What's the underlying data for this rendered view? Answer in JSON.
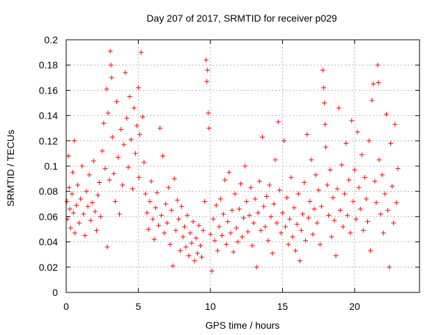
{
  "chart_data": {
    "type": "scatter",
    "title": "Day 207 of 2017, SRMTID for receiver p029",
    "xlabel": "GPS time / hours",
    "ylabel": "SRMTID / TECUs",
    "xlim": [
      0,
      24.5
    ],
    "ylim": [
      0,
      0.2
    ],
    "x_ticks": [
      0,
      5,
      10,
      15,
      20
    ],
    "y_ticks": [
      0,
      0.02,
      0.04,
      0.06,
      0.08,
      0.1,
      0.12,
      0.14,
      0.16,
      0.18,
      0.2
    ],
    "grid": true,
    "marker": "plus",
    "color": "#ff0000",
    "series": [
      {
        "name": "SRMTID",
        "points": [
          [
            0.05,
            0.072
          ],
          [
            0.1,
            0.058
          ],
          [
            0.15,
            0.108
          ],
          [
            0.2,
            0.083
          ],
          [
            0.25,
            0.066
          ],
          [
            0.3,
            0.051
          ],
          [
            0.4,
            0.078
          ],
          [
            0.45,
            0.095
          ],
          [
            0.5,
            0.063
          ],
          [
            0.55,
            0.12
          ],
          [
            0.6,
            0.047
          ],
          [
            0.7,
            0.069
          ],
          [
            0.8,
            0.085
          ],
          [
            0.9,
            0.055
          ],
          [
            1.0,
            0.074
          ],
          [
            1.1,
            0.1
          ],
          [
            1.2,
            0.062
          ],
          [
            1.3,
            0.045
          ],
          [
            1.4,
            0.08
          ],
          [
            1.5,
            0.068
          ],
          [
            1.6,
            0.093
          ],
          [
            1.7,
            0.057
          ],
          [
            1.8,
            0.071
          ],
          [
            1.9,
            0.104
          ],
          [
            2.0,
            0.064
          ],
          [
            2.1,
            0.049
          ],
          [
            2.2,
            0.077
          ],
          [
            2.3,
            0.087
          ],
          [
            2.4,
            0.06
          ],
          [
            2.5,
            0.112
          ],
          [
            2.6,
            0.134
          ],
          [
            2.7,
            0.098
          ],
          [
            2.8,
            0.161
          ],
          [
            2.85,
            0.036
          ],
          [
            2.9,
            0.142
          ],
          [
            3.0,
            0.089
          ],
          [
            3.05,
            0.191
          ],
          [
            3.1,
            0.18
          ],
          [
            3.15,
            0.17
          ],
          [
            3.2,
            0.123
          ],
          [
            3.3,
            0.094
          ],
          [
            3.4,
            0.072
          ],
          [
            3.5,
            0.151
          ],
          [
            3.6,
            0.107
          ],
          [
            3.7,
            0.062
          ],
          [
            3.8,
            0.129
          ],
          [
            3.9,
            0.085
          ],
          [
            4.0,
            0.117
          ],
          [
            4.1,
            0.174
          ],
          [
            4.2,
            0.138
          ],
          [
            4.3,
            0.099
          ],
          [
            4.4,
            0.155
          ],
          [
            4.5,
            0.121
          ],
          [
            4.6,
            0.082
          ],
          [
            4.7,
            0.146
          ],
          [
            4.8,
            0.11
          ],
          [
            4.9,
            0.132
          ],
          [
            5.0,
            0.162
          ],
          [
            5.05,
            0.091
          ],
          [
            5.1,
            0.125
          ],
          [
            5.2,
            0.19
          ],
          [
            5.3,
            0.139
          ],
          [
            5.4,
            0.103
          ],
          [
            5.5,
            0.078
          ],
          [
            5.6,
            0.063
          ],
          [
            5.7,
            0.05
          ],
          [
            5.8,
            0.072
          ],
          [
            5.9,
            0.088
          ],
          [
            6.0,
            0.058
          ],
          [
            6.1,
            0.042
          ],
          [
            6.2,
            0.067
          ],
          [
            6.3,
            0.079
          ],
          [
            6.4,
            0.053
          ],
          [
            6.5,
            0.13
          ],
          [
            6.6,
            0.061
          ],
          [
            6.7,
            0.108
          ],
          [
            6.8,
            0.047
          ],
          [
            6.9,
            0.07
          ],
          [
            7.0,
            0.055
          ],
          [
            7.1,
            0.083
          ],
          [
            7.2,
            0.038
          ],
          [
            7.3,
            0.065
          ],
          [
            7.4,
            0.021
          ],
          [
            7.5,
            0.09
          ],
          [
            7.6,
            0.049
          ],
          [
            7.7,
            0.073
          ],
          [
            7.8,
            0.058
          ],
          [
            7.9,
            0.033
          ],
          [
            8.0,
            0.068
          ],
          [
            8.1,
            0.044
          ],
          [
            8.2,
            0.052
          ],
          [
            8.3,
            0.036
          ],
          [
            8.4,
            0.061
          ],
          [
            8.5,
            0.029
          ],
          [
            8.6,
            0.047
          ],
          [
            8.7,
            0.039
          ],
          [
            8.8,
            0.056
          ],
          [
            8.9,
            0.025
          ],
          [
            9.0,
            0.043
          ],
          [
            9.1,
            0.031
          ],
          [
            9.2,
            0.053
          ],
          [
            9.3,
            0.037
          ],
          [
            9.4,
            0.028
          ],
          [
            9.5,
            0.049
          ],
          [
            9.6,
            0.072
          ],
          [
            9.7,
            0.184
          ],
          [
            9.75,
            0.167
          ],
          [
            9.8,
            0.176
          ],
          [
            9.85,
            0.142
          ],
          [
            9.9,
            0.13
          ],
          [
            10.0,
            0.046
          ],
          [
            10.1,
            0.017
          ],
          [
            10.2,
            0.058
          ],
          [
            10.3,
            0.041
          ],
          [
            10.4,
            0.069
          ],
          [
            10.5,
            0.033
          ],
          [
            10.6,
            0.052
          ],
          [
            10.7,
            0.074
          ],
          [
            10.8,
            0.045
          ],
          [
            10.9,
            0.062
          ],
          [
            11.0,
            0.089
          ],
          [
            11.1,
            0.038
          ],
          [
            11.2,
            0.056
          ],
          [
            11.3,
            0.095
          ],
          [
            11.4,
            0.047
          ],
          [
            11.5,
            0.065
          ],
          [
            11.6,
            0.032
          ],
          [
            11.7,
            0.078
          ],
          [
            11.8,
            0.051
          ],
          [
            11.9,
            0.04
          ],
          [
            12.0,
            0.066
          ],
          [
            12.1,
            0.086
          ],
          [
            12.2,
            0.044
          ],
          [
            12.3,
            0.059
          ],
          [
            12.4,
            0.1
          ],
          [
            12.5,
            0.072
          ],
          [
            12.6,
            0.048
          ],
          [
            12.7,
            0.061
          ],
          [
            12.8,
            0.083
          ],
          [
            12.9,
            0.037
          ],
          [
            13.0,
            0.055
          ],
          [
            13.1,
            0.074
          ],
          [
            13.2,
            0.02
          ],
          [
            13.3,
            0.063
          ],
          [
            13.4,
            0.088
          ],
          [
            13.5,
            0.049
          ],
          [
            13.6,
            0.123
          ],
          [
            13.7,
            0.068
          ],
          [
            13.8,
            0.052
          ],
          [
            13.9,
            0.076
          ],
          [
            14.0,
            0.041
          ],
          [
            14.1,
            0.085
          ],
          [
            14.2,
            0.06
          ],
          [
            14.3,
            0.031
          ],
          [
            14.4,
            0.07
          ],
          [
            14.5,
            0.105
          ],
          [
            14.6,
            0.055
          ],
          [
            14.7,
            0.135
          ],
          [
            14.8,
            0.081
          ],
          [
            14.9,
            0.047
          ],
          [
            15.0,
            0.063
          ],
          [
            15.1,
            0.12
          ],
          [
            15.2,
            0.052
          ],
          [
            15.3,
            0.075
          ],
          [
            15.4,
            0.038
          ],
          [
            15.5,
            0.058
          ],
          [
            15.6,
            0.091
          ],
          [
            15.7,
            0.044
          ],
          [
            15.8,
            0.067
          ],
          [
            15.9,
            0.033
          ],
          [
            16.0,
            0.054
          ],
          [
            16.1,
            0.078
          ],
          [
            16.2,
            0.025
          ],
          [
            16.3,
            0.049
          ],
          [
            16.4,
            0.062
          ],
          [
            16.5,
            0.087
          ],
          [
            16.6,
            0.041
          ],
          [
            16.7,
            0.125
          ],
          [
            16.8,
            0.059
          ],
          [
            16.9,
            0.072
          ],
          [
            17.0,
            0.105
          ],
          [
            17.1,
            0.046
          ],
          [
            17.2,
            0.066
          ],
          [
            17.3,
            0.093
          ],
          [
            17.4,
            0.055
          ],
          [
            17.5,
            0.081
          ],
          [
            17.6,
            0.038
          ],
          [
            17.7,
            0.068
          ],
          [
            17.8,
            0.176
          ],
          [
            17.85,
            0.162
          ],
          [
            17.9,
            0.15
          ],
          [
            17.95,
            0.133
          ],
          [
            18.0,
            0.115
          ],
          [
            18.1,
            0.085
          ],
          [
            18.2,
            0.061
          ],
          [
            18.3,
            0.097
          ],
          [
            18.4,
            0.044
          ],
          [
            18.5,
            0.075
          ],
          [
            18.6,
            0.057
          ],
          [
            18.7,
            0.029
          ],
          [
            18.8,
            0.082
          ],
          [
            18.9,
            0.146
          ],
          [
            19.0,
            0.065
          ],
          [
            19.1,
            0.101
          ],
          [
            19.2,
            0.052
          ],
          [
            19.3,
            0.078
          ],
          [
            19.4,
            0.118
          ],
          [
            19.5,
            0.061
          ],
          [
            19.6,
            0.089
          ],
          [
            19.7,
            0.047
          ],
          [
            19.8,
            0.136
          ],
          [
            19.9,
            0.072
          ],
          [
            20.0,
            0.097
          ],
          [
            20.1,
            0.058
          ],
          [
            20.2,
            0.127
          ],
          [
            20.3,
            0.083
          ],
          [
            20.4,
            0.066
          ],
          [
            20.5,
            0.109
          ],
          [
            20.6,
            0.049
          ],
          [
            20.7,
            0.091
          ],
          [
            20.8,
            0.074
          ],
          [
            20.9,
            0.056
          ],
          [
            21.0,
            0.12
          ],
          [
            21.1,
            0.033
          ],
          [
            21.2,
            0.152
          ],
          [
            21.3,
            0.165
          ],
          [
            21.4,
            0.088
          ],
          [
            21.5,
            0.071
          ],
          [
            21.6,
            0.18
          ],
          [
            21.65,
            0.166
          ],
          [
            21.7,
            0.105
          ],
          [
            21.8,
            0.062
          ],
          [
            21.9,
            0.093
          ],
          [
            22.0,
            0.047
          ],
          [
            22.1,
            0.078
          ],
          [
            22.2,
            0.141
          ],
          [
            22.3,
            0.065
          ],
          [
            22.4,
            0.02
          ],
          [
            22.5,
            0.118
          ],
          [
            22.6,
            0.084
          ],
          [
            22.7,
            0.055
          ],
          [
            22.8,
            0.133
          ],
          [
            22.9,
            0.071
          ],
          [
            23.0,
            0.098
          ]
        ]
      }
    ]
  }
}
